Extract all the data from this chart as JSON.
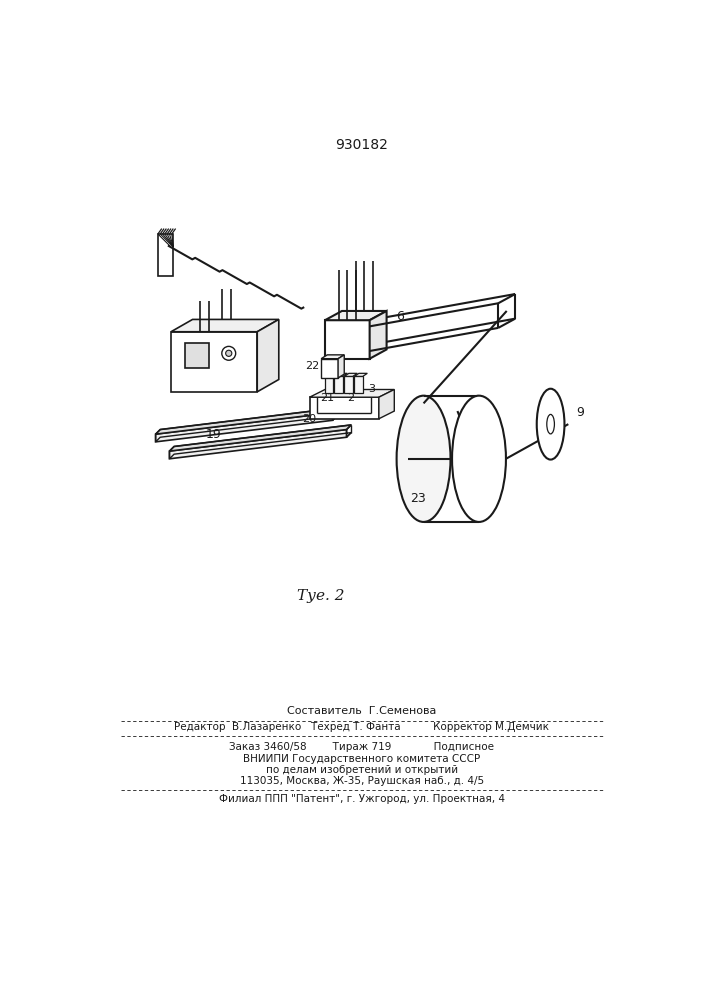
{
  "patent_number": "930182",
  "figure_label": "Τуе. 2",
  "background_color": "#ffffff",
  "line_color": "#1a1a1a",
  "figsize": [
    7.07,
    10.0
  ],
  "dpi": 100,
  "footer_lines": [
    "Составитель  Г.Семенова",
    "Редактор  В.Лазаренко   Техред Т. Фанта          Корректор М.Демчик",
    "Заказ 3460/58        Тираж 719             Подписное",
    "ВНИИПИ Государственного комитета СССР",
    "по делам изобретений и открытий",
    "113035, Москва, Ж-35, Раушская наб., д. 4/5",
    "Филиал ППП \"Патент\", г. Ужгород, ул. Проектная, 4"
  ]
}
